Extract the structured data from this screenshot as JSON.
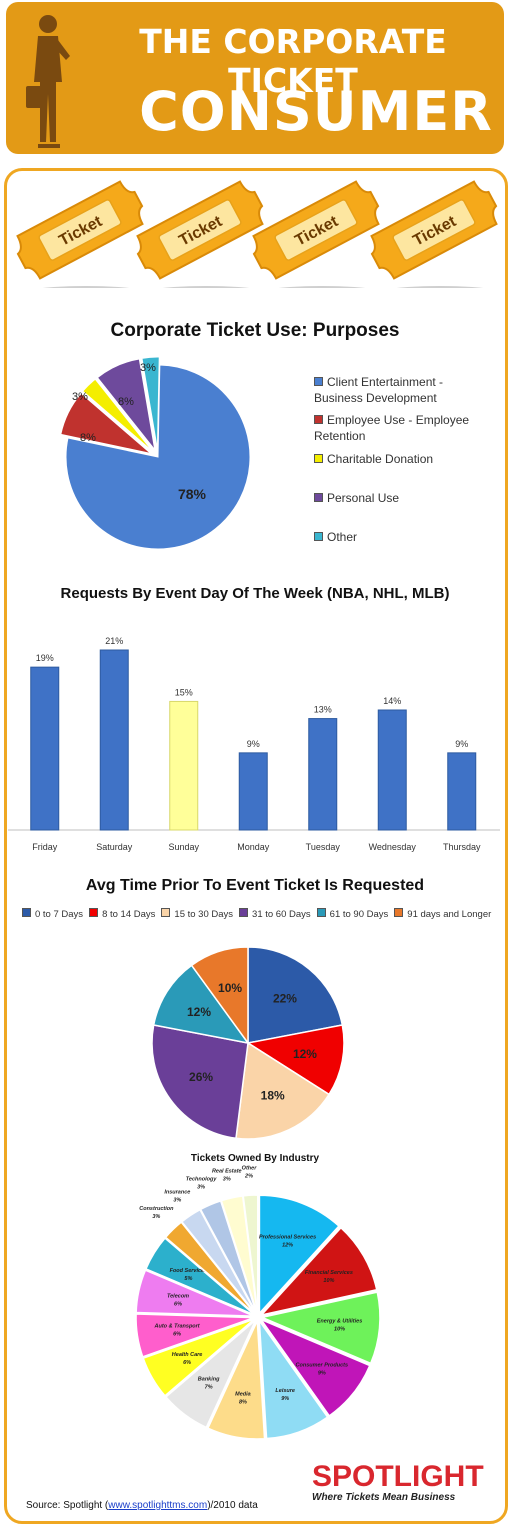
{
  "header": {
    "line1": "THE CORPORATE TICKET",
    "line2": "CONSUMER"
  },
  "ticket_label": "Ticket",
  "chart_data": [
    {
      "type": "pie",
      "title": "Corporate Ticket Use: Purposes",
      "categories": [
        "Client Entertainment - Business Development",
        "Employee Use - Employee Retention",
        "Charitable Donation",
        "Personal Use",
        "Other"
      ],
      "values": [
        78,
        8,
        3,
        8,
        3
      ],
      "labels": [
        "78%",
        "8%",
        "3%",
        "8%",
        "3%"
      ],
      "colors": [
        "#4a7fd0",
        "#c0322e",
        "#f4ee00",
        "#6e4a9c",
        "#3ab6d0"
      ],
      "legend_position": "right"
    },
    {
      "type": "bar",
      "title": "Requests By Event Day Of The Week (NBA, NHL, MLB)",
      "categories": [
        "Friday",
        "Saturday",
        "Sunday",
        "Monday",
        "Tuesday",
        "Wednesday",
        "Thursday"
      ],
      "values": [
        19,
        21,
        15,
        9,
        13,
        14,
        9
      ],
      "labels": [
        "19%",
        "21%",
        "15%",
        "9%",
        "13%",
        "14%",
        "9%"
      ],
      "colors": [
        "#3f72c6",
        "#3f72c6",
        "#ffff99",
        "#3f72c6",
        "#3f72c6",
        "#3f72c6",
        "#3f72c6"
      ],
      "ylim": [
        0,
        21
      ]
    },
    {
      "type": "pie",
      "title": "Avg Time Prior To Event Ticket Is Requested",
      "categories": [
        "0 to 7 Days",
        "8 to 14 Days",
        "15 to 30 Days",
        "31 to 60 Days",
        "61 to 90 Days",
        "91 days and Longer"
      ],
      "values": [
        22,
        12,
        18,
        26,
        12,
        10
      ],
      "labels": [
        "22%",
        "12%",
        "18%",
        "26%",
        "12%",
        "10%"
      ],
      "colors": [
        "#2c5aa8",
        "#f00000",
        "#fad4a8",
        "#6a3f98",
        "#2a9ab8",
        "#e8782a"
      ],
      "legend_position": "top"
    },
    {
      "type": "pie",
      "title": "Tickets Owned By Industry",
      "categories": [
        "Professional Services",
        "Financial Services",
        "Energy & Utilities",
        "Consumer Products",
        "Leisure",
        "Media",
        "Banking",
        "Health Care",
        "Auto & Transport",
        "Telecom",
        "Food Services",
        "Construction",
        "Insurance",
        "Technology",
        "Real Estate",
        "Other"
      ],
      "values": [
        12,
        10,
        10,
        9,
        9,
        8,
        7,
        6,
        6,
        6,
        5,
        3,
        3,
        3,
        3,
        2
      ],
      "labels": [
        "12%",
        "10%",
        "10%",
        "9%",
        "9%",
        "8%",
        "7%",
        "6%",
        "6%",
        "6%",
        "5%",
        "3%",
        "3%",
        "3%",
        "3%",
        "2%"
      ],
      "colors": [
        "#15b8f0",
        "#d01414",
        "#6ef25a",
        "#c015b8",
        "#8fdcf4",
        "#fddc8a",
        "#e6e6e6",
        "#ffff22",
        "#ff5ecc",
        "#ee7cf0",
        "#2cb0cc",
        "#f0a830",
        "#c8d8f0",
        "#b0c6e6",
        "#fffcd0",
        "#eef6d0"
      ]
    }
  ],
  "legend_chart3": [
    "0 to 7 Days",
    "8 to 14 Days",
    "15 to 30 Days",
    "31 to 60 Days",
    "61 to 90 Days",
    "91 days and Longer"
  ],
  "footer": {
    "prefix": "Source: Spotlight (",
    "link": "www.spotlighttms.com",
    "suffix": ")/2010 data"
  },
  "logo": {
    "word": "SPOTLIGHT",
    "tagline": "Where Tickets Mean Business"
  }
}
